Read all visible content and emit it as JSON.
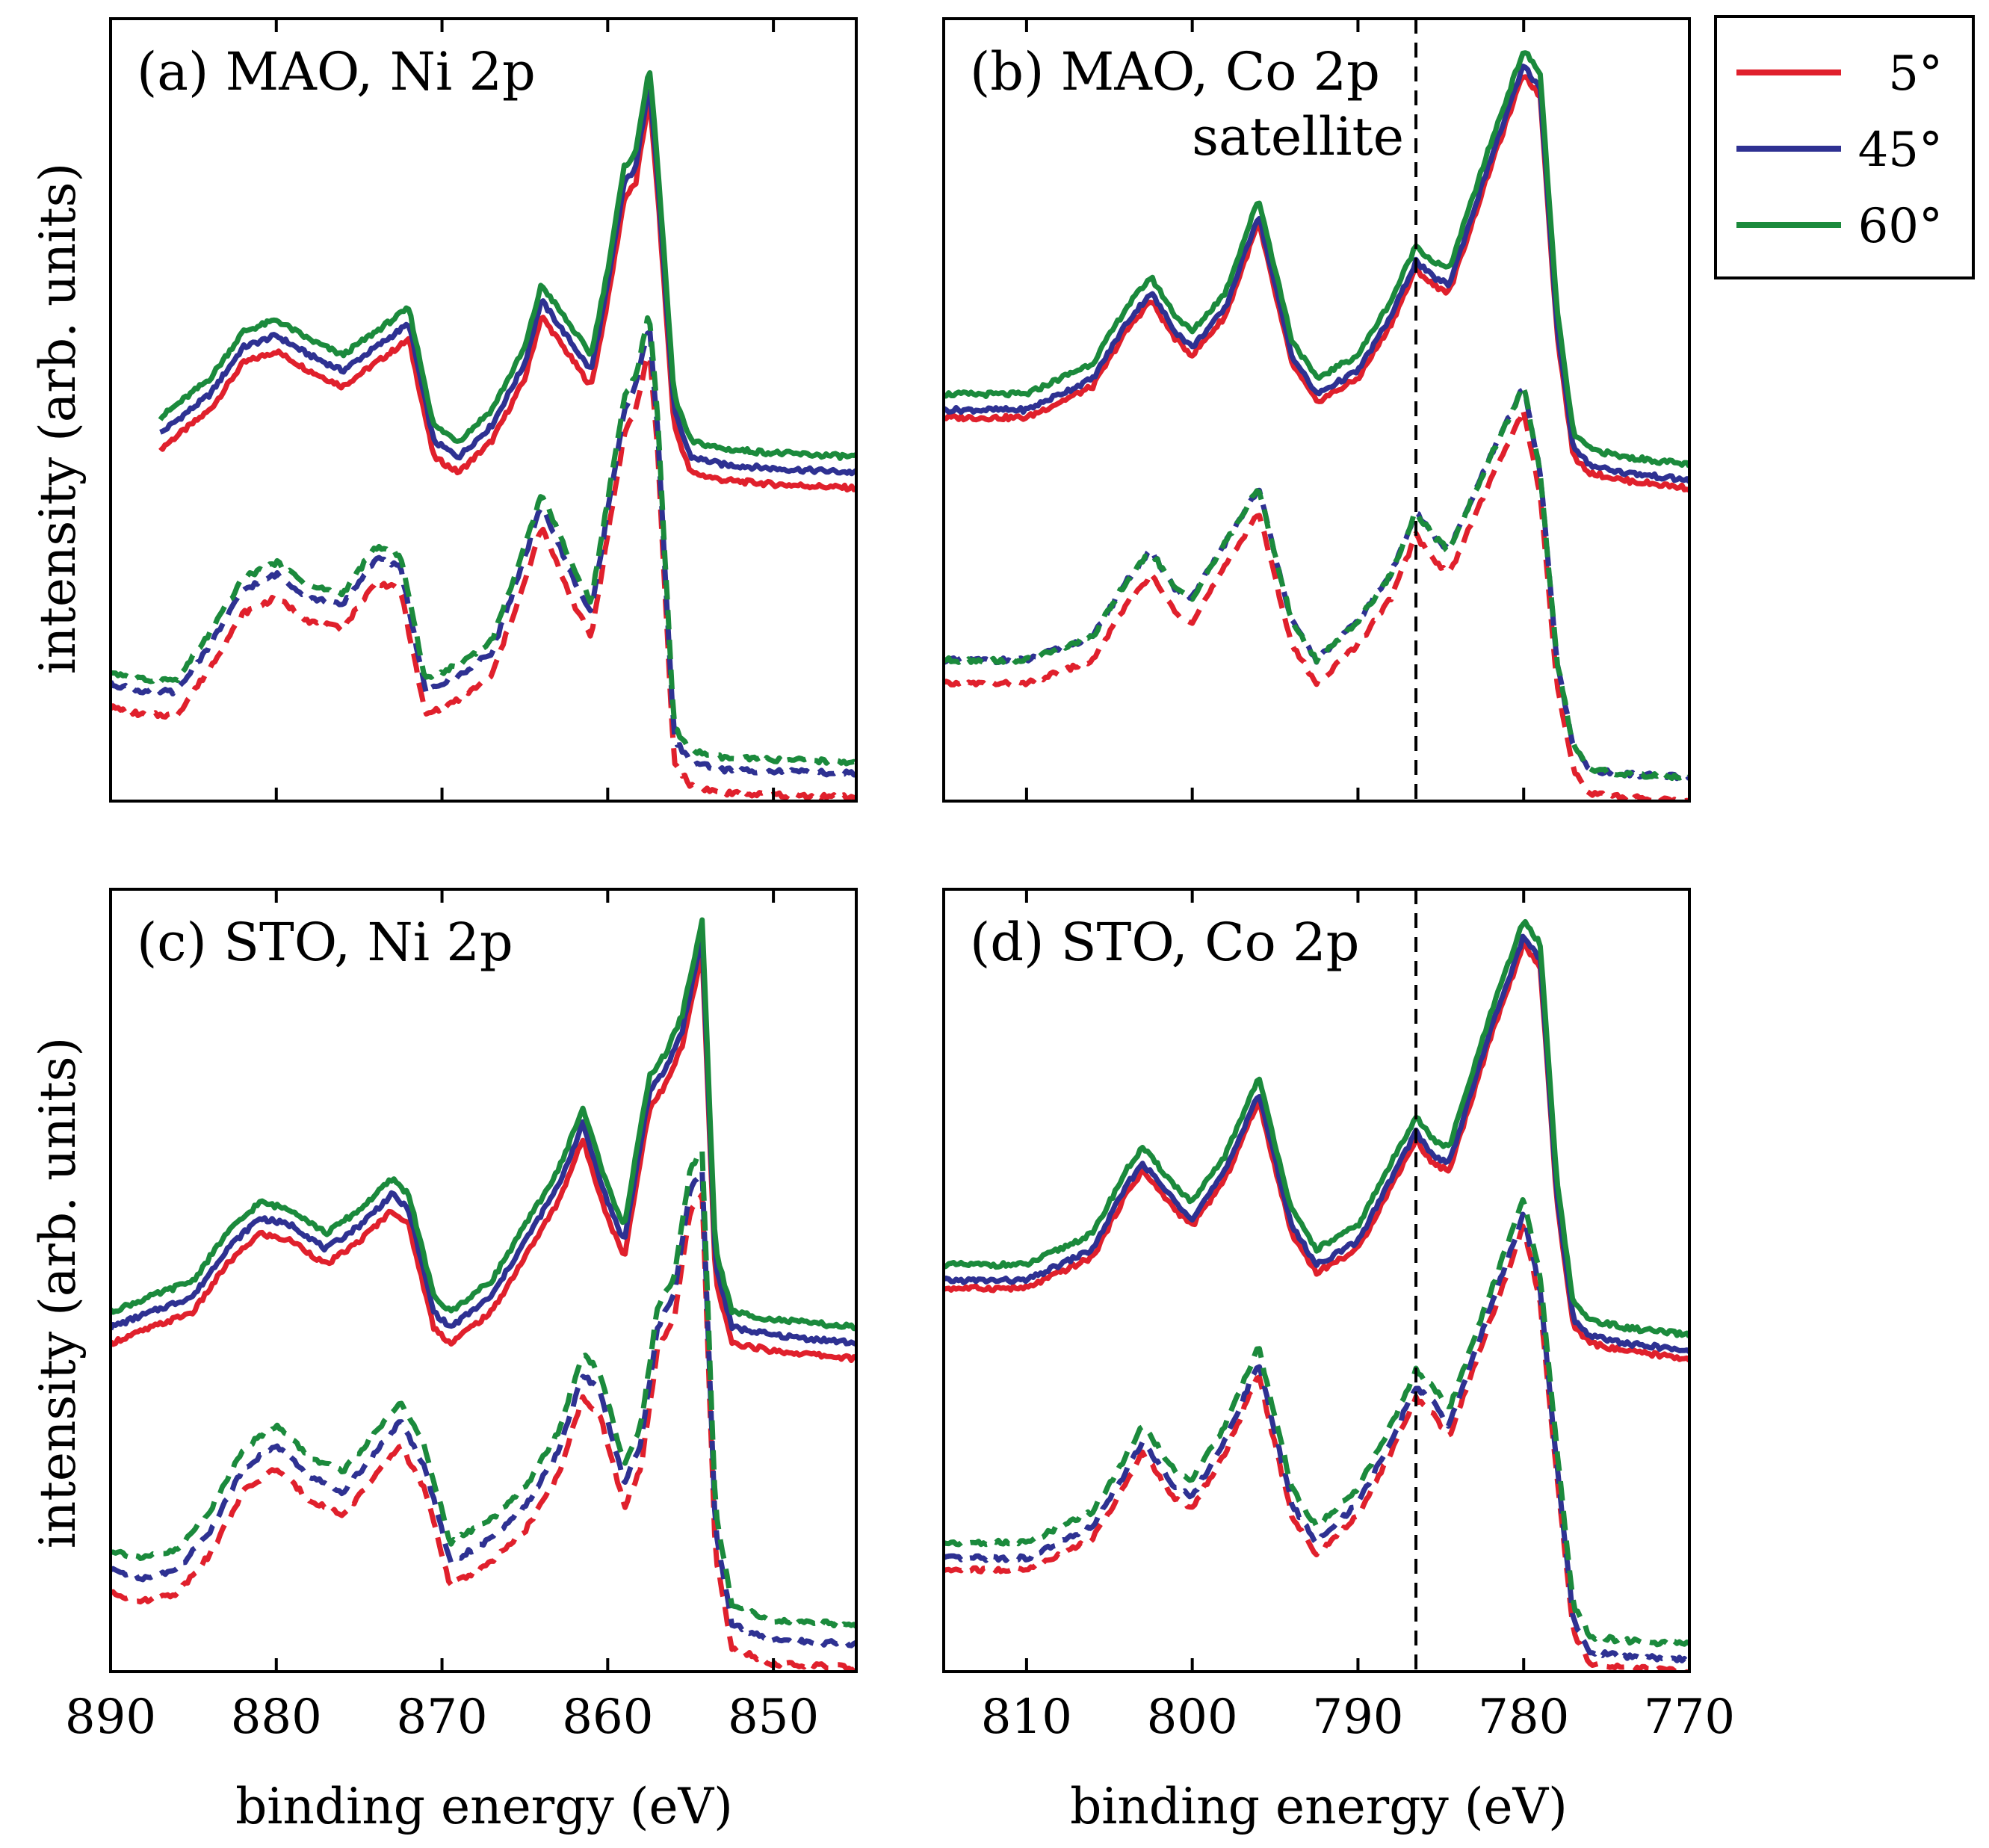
{
  "figure": {
    "y_label": "intensity (arb. units)",
    "x_label": "binding energy (eV)",
    "legend": {
      "entries": [
        {
          "label": "5°",
          "color": "#e0202c"
        },
        {
          "label": "45°",
          "color": "#2e3192"
        },
        {
          "label": "60°",
          "color": "#1b8a3c"
        }
      ]
    },
    "satellite_label": "satellite"
  },
  "chart_data": [
    {
      "type": "line",
      "title": "(a) MAO, Ni 2p",
      "xlabel": "",
      "ylabel": "intensity (arb. units)",
      "xlim": [
        890,
        845
      ],
      "ylim": [
        0,
        1
      ],
      "x_ticks": [],
      "series_names": [
        "5°",
        "45°",
        "60°"
      ],
      "solid_profile": {
        "x": [
          887,
          884,
          882,
          880,
          878,
          876,
          874,
          872,
          870.5,
          869,
          867,
          865,
          864,
          862,
          861,
          860,
          859,
          858.3,
          857.5,
          857,
          856,
          855,
          853,
          850,
          845
        ],
        "y": [
          0.45,
          0.5,
          0.56,
          0.575,
          0.55,
          0.53,
          0.56,
          0.59,
          0.44,
          0.42,
          0.46,
          0.54,
          0.62,
          0.56,
          0.53,
          0.64,
          0.77,
          0.79,
          0.9,
          0.78,
          0.48,
          0.42,
          0.41,
          0.405,
          0.4
        ]
      },
      "solid_offsets": [
        0.0,
        0.02,
        0.04
      ],
      "dashed_profile": {
        "x": [
          890,
          888,
          886,
          884,
          882,
          880,
          878,
          876,
          874,
          872.5,
          871,
          869,
          867,
          865,
          864,
          862,
          861,
          860,
          859,
          858.3,
          857.5,
          857,
          856,
          855,
          853,
          850,
          845
        ],
        "y": [
          0.12,
          0.11,
          0.11,
          0.17,
          0.24,
          0.26,
          0.23,
          0.22,
          0.28,
          0.27,
          0.11,
          0.13,
          0.16,
          0.28,
          0.35,
          0.25,
          0.21,
          0.34,
          0.47,
          0.5,
          0.58,
          0.45,
          0.05,
          0.02,
          0.01,
          0.008,
          0.005
        ]
      },
      "dashed_offsets": [
        0.0,
        0.03,
        0.045
      ]
    },
    {
      "type": "line",
      "title": "(b) MAO, Co 2p",
      "xlabel": "",
      "ylabel": "",
      "xlim": [
        815,
        770
      ],
      "ylim": [
        0,
        1
      ],
      "x_ticks": [],
      "satellite_x": 786.5,
      "series_names": [
        "5°",
        "45°",
        "60°"
      ],
      "solid_profile": {
        "x": [
          815,
          810,
          806,
          804,
          802.5,
          801,
          800,
          798,
          796,
          794,
          792.5,
          790,
          788,
          786.5,
          785.5,
          784.5,
          782,
          780,
          779,
          778,
          777,
          776,
          774,
          770
        ],
        "y": [
          0.49,
          0.49,
          0.53,
          0.6,
          0.64,
          0.59,
          0.57,
          0.62,
          0.74,
          0.56,
          0.51,
          0.54,
          0.61,
          0.68,
          0.66,
          0.65,
          0.81,
          0.93,
          0.9,
          0.6,
          0.44,
          0.42,
          0.41,
          0.4
        ]
      },
      "solid_offsets": [
        0.0,
        0.01,
        0.03
      ],
      "dashed_profile": {
        "x": [
          815,
          810,
          806,
          804,
          802.5,
          801,
          800,
          798,
          796,
          794,
          792.5,
          790,
          788,
          786.5,
          785.5,
          784.5,
          782,
          780,
          779,
          778,
          777,
          776,
          774,
          770
        ],
        "y": [
          0.15,
          0.15,
          0.18,
          0.25,
          0.29,
          0.24,
          0.23,
          0.3,
          0.37,
          0.2,
          0.15,
          0.2,
          0.26,
          0.34,
          0.31,
          0.29,
          0.41,
          0.5,
          0.39,
          0.15,
          0.04,
          0.01,
          0.005,
          0.0
        ]
      },
      "dashed_offsets": [
        0.0,
        0.03,
        0.03
      ]
    },
    {
      "type": "line",
      "title": "(c) STO, Ni 2p",
      "xlabel": "binding energy (eV)",
      "ylabel": "intensity (arb. units)",
      "xlim": [
        890,
        845
      ],
      "ylim": [
        0,
        1
      ],
      "x_ticks": [
        890,
        880,
        870,
        860,
        850
      ],
      "series_names": [
        "5°",
        "45°",
        "60°"
      ],
      "solid_profile": {
        "x": [
          890,
          885,
          883,
          881,
          879,
          877,
          875,
          873,
          872,
          870.5,
          869.5,
          867,
          865,
          863,
          861.5,
          860,
          859,
          857.5,
          856.5,
          855.5,
          854.3,
          853.5,
          852.5,
          850,
          845
        ],
        "y": [
          0.42,
          0.46,
          0.52,
          0.56,
          0.55,
          0.52,
          0.55,
          0.59,
          0.57,
          0.44,
          0.42,
          0.46,
          0.53,
          0.6,
          0.68,
          0.58,
          0.53,
          0.72,
          0.75,
          0.8,
          0.92,
          0.5,
          0.42,
          0.41,
          0.4
        ]
      },
      "solid_offsets": [
        0.0,
        0.02,
        0.04
      ],
      "dashed_profile": {
        "x": [
          890,
          888,
          886,
          884,
          882,
          880,
          878,
          876,
          874,
          872.5,
          871,
          869.5,
          867,
          865,
          863,
          861.5,
          860.5,
          859,
          858,
          857,
          856,
          855,
          854.3,
          853.5,
          852.5,
          850,
          845
        ],
        "y": [
          0.1,
          0.09,
          0.1,
          0.15,
          0.23,
          0.26,
          0.22,
          0.2,
          0.25,
          0.29,
          0.23,
          0.11,
          0.14,
          0.18,
          0.25,
          0.35,
          0.33,
          0.21,
          0.26,
          0.41,
          0.45,
          0.59,
          0.61,
          0.15,
          0.03,
          0.01,
          0.005
        ]
      },
      "dashed_offsets": [
        0.0,
        0.03,
        0.055
      ]
    },
    {
      "type": "line",
      "title": "(d) STO, Co 2p",
      "xlabel": "binding energy (eV)",
      "ylabel": "",
      "xlim": [
        815,
        770
      ],
      "ylim": [
        0,
        1
      ],
      "x_ticks": [
        810,
        800,
        790,
        780,
        770
      ],
      "satellite_x": 786.5,
      "series_names": [
        "5°",
        "45°",
        "60°"
      ],
      "solid_profile": {
        "x": [
          815,
          810,
          806,
          804,
          803,
          801,
          800,
          798,
          796,
          794,
          792.5,
          790,
          788,
          786.5,
          785.5,
          784.5,
          782,
          780,
          779,
          778,
          777,
          776,
          774,
          770
        ],
        "y": [
          0.49,
          0.49,
          0.53,
          0.61,
          0.64,
          0.59,
          0.57,
          0.63,
          0.73,
          0.56,
          0.51,
          0.54,
          0.62,
          0.68,
          0.65,
          0.64,
          0.81,
          0.93,
          0.9,
          0.6,
          0.44,
          0.42,
          0.41,
          0.4
        ]
      },
      "solid_offsets": [
        0.0,
        0.01,
        0.03
      ],
      "dashed_profile": {
        "x": [
          815,
          810,
          806,
          804,
          803,
          801,
          800,
          798,
          796,
          794,
          792.5,
          790,
          788,
          786.5,
          785.5,
          784.5,
          782,
          780,
          779,
          778,
          777,
          776,
          774,
          770
        ],
        "y": [
          0.13,
          0.13,
          0.17,
          0.24,
          0.28,
          0.22,
          0.21,
          0.28,
          0.38,
          0.2,
          0.15,
          0.2,
          0.28,
          0.35,
          0.33,
          0.3,
          0.45,
          0.57,
          0.47,
          0.25,
          0.05,
          0.01,
          0.005,
          0.0
        ]
      },
      "dashed_offsets": [
        0.0,
        0.015,
        0.035
      ]
    }
  ]
}
